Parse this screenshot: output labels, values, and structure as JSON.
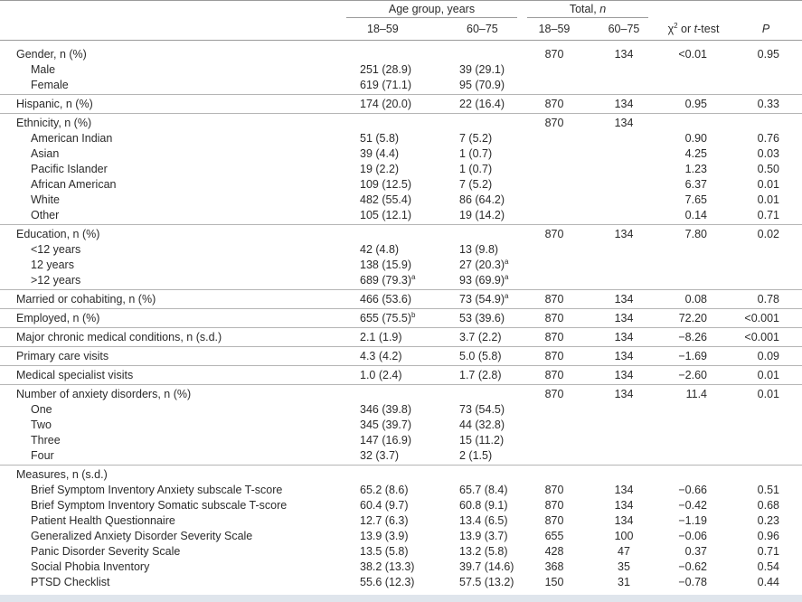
{
  "header": {
    "group1": "Age group, years",
    "group2": "Total, ",
    "group2_italic": "n",
    "columns": [
      "18–59",
      "60–75",
      "18–59",
      "60–75"
    ],
    "test": {
      "symbol": "χ",
      "sup": "2",
      "middle": " or ",
      "italic": "t",
      "end": "-test"
    },
    "p": "P"
  },
  "groups": [
    {
      "rows": [
        [
          "Gender, n (%)",
          null,
          null,
          "870",
          "134",
          "<0.01",
          "0.95"
        ],
        [
          "Male",
          "251 (28.9)",
          "39 (29.1)",
          null,
          null,
          null,
          null
        ],
        [
          "Female",
          "619 (71.1)",
          "95 (70.9)",
          null,
          null,
          null,
          null
        ]
      ]
    },
    {
      "rows": [
        [
          "Hispanic, n (%)",
          "174 (20.0)",
          "22 (16.4)",
          "870",
          "134",
          "0.95",
          "0.33"
        ]
      ]
    },
    {
      "rows": [
        [
          "Ethnicity, n (%)",
          null,
          null,
          "870",
          "134",
          null,
          null
        ],
        [
          "American Indian",
          "51 (5.8)",
          "7 (5.2)",
          null,
          null,
          "0.90",
          "0.76"
        ],
        [
          "Asian",
          "39 (4.4)",
          "1 (0.7)",
          null,
          null,
          "4.25",
          "0.03"
        ],
        [
          "Pacific Islander",
          "19 (2.2)",
          "1 (0.7)",
          null,
          null,
          "1.23",
          "0.50"
        ],
        [
          "African American",
          "109 (12.5)",
          "7 (5.2)",
          null,
          null,
          "6.37",
          "0.01"
        ],
        [
          "White",
          "482 (55.4)",
          "86 (64.2)",
          null,
          null,
          "7.65",
          "0.01"
        ],
        [
          "Other",
          "105 (12.1)",
          "19 (14.2)",
          null,
          null,
          "0.14",
          "0.71"
        ]
      ]
    },
    {
      "rows": [
        [
          "Education, n (%)",
          null,
          null,
          "870",
          "134",
          "7.80",
          "0.02"
        ],
        [
          "<12 years",
          "42 (4.8)",
          "13 (9.8)",
          null,
          null,
          null,
          null
        ],
        [
          "12 years",
          "138 (15.9)",
          {
            "text": "27 (20.3)",
            "sup": "a"
          },
          null,
          null,
          null,
          null
        ],
        [
          ">12 years",
          {
            "text": "689 (79.3)",
            "sup": "a"
          },
          {
            "text": "93 (69.9)",
            "sup": "a"
          },
          null,
          null,
          null,
          null
        ]
      ]
    },
    {
      "rows": [
        [
          "Married or cohabiting, n (%)",
          "466 (53.6)",
          {
            "text": "73 (54.9)",
            "sup": "a"
          },
          "870",
          "134",
          "0.08",
          "0.78"
        ]
      ]
    },
    {
      "rows": [
        [
          "Employed, n (%)",
          {
            "text": "655 (75.5)",
            "sup": "b"
          },
          "53 (39.6)",
          "870",
          "134",
          "72.20",
          "<0.001"
        ]
      ]
    },
    {
      "rows": [
        [
          "Major chronic medical conditions, n (s.d.)",
          "2.1 (1.9)",
          "3.7 (2.2)",
          "870",
          "134",
          "−8.26",
          "<0.001"
        ]
      ]
    },
    {
      "rows": [
        [
          "Primary care visits",
          "4.3 (4.2)",
          "5.0 (5.8)",
          "870",
          "134",
          "−1.69",
          "0.09"
        ]
      ]
    },
    {
      "rows": [
        [
          "Medical specialist visits",
          "1.0 (2.4)",
          "1.7 (2.8)",
          "870",
          "134",
          "−2.60",
          "0.01"
        ]
      ]
    },
    {
      "rows": [
        [
          "Number of anxiety disorders, n (%)",
          null,
          null,
          "870",
          "134",
          "11.4",
          "0.01"
        ],
        [
          "One",
          "346 (39.8)",
          "73 (54.5)",
          null,
          null,
          null,
          null
        ],
        [
          "Two",
          "345 (39.7)",
          "44 (32.8)",
          null,
          null,
          null,
          null
        ],
        [
          "Three",
          "147 (16.9)",
          "15 (11.2)",
          null,
          null,
          null,
          null
        ],
        [
          "Four",
          "32 (3.7)",
          "2 (1.5)",
          null,
          null,
          null,
          null
        ]
      ]
    },
    {
      "rows": [
        [
          "Measures, n (s.d.)",
          null,
          null,
          null,
          null,
          null,
          null
        ],
        [
          "Brief Symptom Inventory Anxiety subscale T-score",
          "65.2 (8.6)",
          "65.7 (8.4)",
          "870",
          "134",
          "−0.66",
          "0.51"
        ],
        [
          "Brief Symptom Inventory Somatic subscale T-score",
          "60.4 (9.7)",
          "60.8 (9.1)",
          "870",
          "134",
          "−0.42",
          "0.68"
        ],
        [
          "Patient Health Questionnaire",
          "12.7 (6.3)",
          "13.4 (6.5)",
          "870",
          "134",
          "−1.19",
          "0.23"
        ],
        [
          "Generalized Anxiety Disorder Severity Scale",
          "13.9 (3.9)",
          "13.9 (3.7)",
          "655",
          "100",
          "−0.06",
          "0.96"
        ],
        [
          "Panic Disorder Severity Scale",
          "13.5 (5.8)",
          "13.2 (5.8)",
          "428",
          "47",
          "0.37",
          "0.71"
        ],
        [
          "Social Phobia Inventory",
          "38.2 (13.3)",
          "39.7 (14.6)",
          "368",
          "35",
          "−0.62",
          "0.54"
        ],
        [
          "PTSD Checklist",
          "55.6 (12.3)",
          "57.5 (13.2)",
          "150",
          "31",
          "−0.78",
          "0.44"
        ]
      ]
    }
  ]
}
